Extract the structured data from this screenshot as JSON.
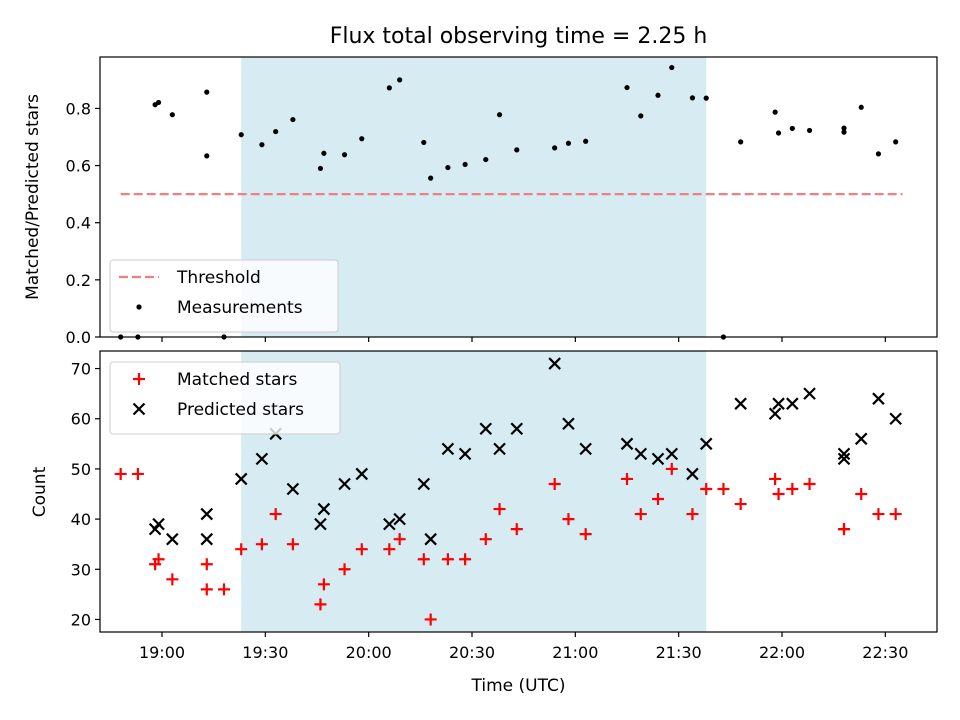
{
  "chart_data": [
    {
      "type": "scatter",
      "title": "Flux total observing time = 2.25 h",
      "xlabel": "",
      "ylabel": "Matched/Predicted stars",
      "xlim": [
        "18:42",
        "22:45"
      ],
      "ylim": [
        0,
        0.98
      ],
      "yticks": [
        "0.0",
        "0.2",
        "0.4",
        "0.6",
        "0.8"
      ],
      "highlight_span": [
        "19:23",
        "21:38"
      ],
      "legend": "lower-left",
      "series": [
        {
          "name": "Threshold",
          "style": "dashed-line",
          "color": "#f08080",
          "x": [
            "18:48",
            "22:35"
          ],
          "y": [
            0.5,
            0.5
          ]
        },
        {
          "name": "Measurements",
          "style": "dot",
          "color": "#000000",
          "x": [
            "18:48",
            "18:53",
            "18:58",
            "18:59",
            "19:03",
            "19:13",
            "19:13",
            "19:18",
            "19:23",
            "19:29",
            "19:33",
            "19:38",
            "19:46",
            "19:47",
            "19:53",
            "19:58",
            "20:06",
            "20:09",
            "20:16",
            "20:18",
            "20:23",
            "20:28",
            "20:34",
            "20:38",
            "20:43",
            "20:54",
            "20:58",
            "21:03",
            "21:15",
            "21:19",
            "21:24",
            "21:28",
            "21:34",
            "21:38",
            "21:43",
            "21:48",
            "21:58",
            "21:59",
            "22:03",
            "22:08",
            "22:18",
            "22:18",
            "22:23",
            "22:28",
            "22:33"
          ],
          "y": [
            0.0,
            0.0,
            0.813,
            0.821,
            0.778,
            0.634,
            0.857,
            0.0,
            0.708,
            0.673,
            0.719,
            0.761,
            0.59,
            0.643,
            0.638,
            0.694,
            0.872,
            0.9,
            0.681,
            0.556,
            0.593,
            0.604,
            0.621,
            0.778,
            0.655,
            0.662,
            0.678,
            0.685,
            0.873,
            0.774,
            0.846,
            0.943,
            0.837,
            0.836,
            0.0,
            0.683,
            0.787,
            0.714,
            0.73,
            0.723,
            0.731,
            0.717,
            0.804,
            0.641,
            0.683
          ]
        }
      ]
    },
    {
      "type": "scatter",
      "xlabel": "Time (UTC)",
      "ylabel": "Count",
      "xlim": [
        "18:42",
        "22:45"
      ],
      "ylim": [
        17.5,
        73.5
      ],
      "xticks": [
        "19:00",
        "19:30",
        "20:00",
        "20:30",
        "21:00",
        "21:30",
        "22:00",
        "22:30"
      ],
      "yticks": [
        "20",
        "30",
        "40",
        "50",
        "60",
        "70"
      ],
      "highlight_span": [
        "19:23",
        "21:38"
      ],
      "legend": "upper-left",
      "series": [
        {
          "name": "Matched stars",
          "style": "plus",
          "color": "#ff0000",
          "x": [
            "18:48",
            "18:53",
            "18:58",
            "18:59",
            "19:03",
            "19:13",
            "19:13",
            "19:18",
            "19:23",
            "19:29",
            "19:33",
            "19:38",
            "19:46",
            "19:47",
            "19:53",
            "19:58",
            "20:06",
            "20:09",
            "20:16",
            "20:18",
            "20:23",
            "20:28",
            "20:34",
            "20:38",
            "20:43",
            "20:54",
            "20:58",
            "21:03",
            "21:15",
            "21:19",
            "21:24",
            "21:28",
            "21:34",
            "21:38",
            "21:43",
            "21:48",
            "21:58",
            "21:59",
            "22:03",
            "22:08",
            "22:18",
            "22:18",
            "22:23",
            "22:28",
            "22:33"
          ],
          "y": [
            49,
            49,
            31,
            32,
            28,
            26,
            31,
            26,
            34,
            35,
            41,
            35,
            23,
            27,
            30,
            34,
            34,
            36,
            32,
            20,
            32,
            32,
            36,
            42,
            38,
            47,
            40,
            37,
            48,
            41,
            44,
            50,
            41,
            46,
            46,
            43,
            48,
            45,
            46,
            47,
            38,
            38,
            45,
            41,
            41
          ]
        },
        {
          "name": "Predicted stars",
          "style": "cross",
          "color": "#000000",
          "x": [
            "18:58",
            "18:59",
            "19:03",
            "19:13",
            "19:13",
            "19:23",
            "19:29",
            "19:33",
            "19:38",
            "19:46",
            "19:47",
            "19:53",
            "19:58",
            "20:06",
            "20:09",
            "20:16",
            "20:18",
            "20:23",
            "20:28",
            "20:34",
            "20:38",
            "20:43",
            "20:54",
            "20:58",
            "21:03",
            "21:15",
            "21:19",
            "21:24",
            "21:28",
            "21:34",
            "21:38",
            "21:48",
            "21:58",
            "21:59",
            "22:03",
            "22:08",
            "22:18",
            "22:18",
            "22:23",
            "22:28",
            "22:33"
          ],
          "y": [
            38,
            39,
            36,
            36,
            41,
            48,
            52,
            57,
            46,
            39,
            42,
            47,
            49,
            39,
            40,
            47,
            36,
            54,
            53,
            58,
            54,
            58,
            71,
            59,
            54,
            55,
            53,
            52,
            53,
            49,
            55,
            63,
            61,
            63,
            63,
            65,
            52,
            53,
            56,
            64,
            60
          ]
        }
      ]
    }
  ]
}
